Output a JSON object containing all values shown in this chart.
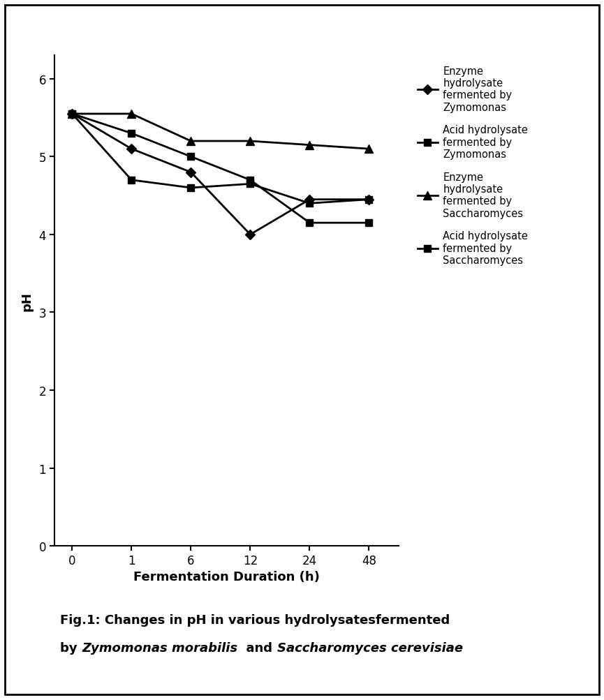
{
  "x_positions": [
    0,
    1,
    2,
    3,
    4,
    5
  ],
  "x_labels": [
    "0",
    "1",
    "6",
    "12",
    "24",
    "48"
  ],
  "series": [
    {
      "label": "Enzyme\nhydrolysate\nfermented by\nZymomonas",
      "y": [
        5.55,
        5.1,
        4.8,
        4.0,
        4.45,
        4.45
      ],
      "marker": "D",
      "color": "#000000",
      "linewidth": 2.0,
      "markersize": 7
    },
    {
      "label": "Acid hydrolysate\nfermented by\nZymomonas",
      "y": [
        5.55,
        4.7,
        4.6,
        4.65,
        4.4,
        4.45
      ],
      "marker": "s",
      "color": "#000000",
      "linewidth": 2.0,
      "markersize": 7
    },
    {
      "label": "Enzyme\nhydrolysate\nfermented by\nSaccharomyces",
      "y": [
        5.55,
        5.55,
        5.2,
        5.2,
        5.15,
        5.1
      ],
      "marker": "^",
      "color": "#000000",
      "linewidth": 2.0,
      "markersize": 8
    },
    {
      "label": "Acid hydrolysate\nfermented by\nSaccharomyces",
      "y": [
        5.55,
        5.3,
        5.0,
        4.7,
        4.15,
        4.15
      ],
      "marker": "s",
      "color": "#000000",
      "linewidth": 2.0,
      "markersize": 7
    }
  ],
  "xlabel": "Fermentation Duration (h)",
  "ylabel": "pH",
  "ylim": [
    0,
    6.3
  ],
  "yticks": [
    0,
    1,
    2,
    3,
    4,
    5,
    6
  ],
  "background_color": "#ffffff",
  "legend_fontsize": 10.5,
  "axis_fontsize": 13,
  "tick_fontsize": 12,
  "caption_line1": "Fig.1: Changes in pH in various hydrolysatesfermented",
  "caption_line2_plain": "by ",
  "caption_line2_italic1": "Zymomonas morabilis",
  "caption_line2_mid": "  and ",
  "caption_line2_italic2": "Saccharomyces cerevisiae"
}
